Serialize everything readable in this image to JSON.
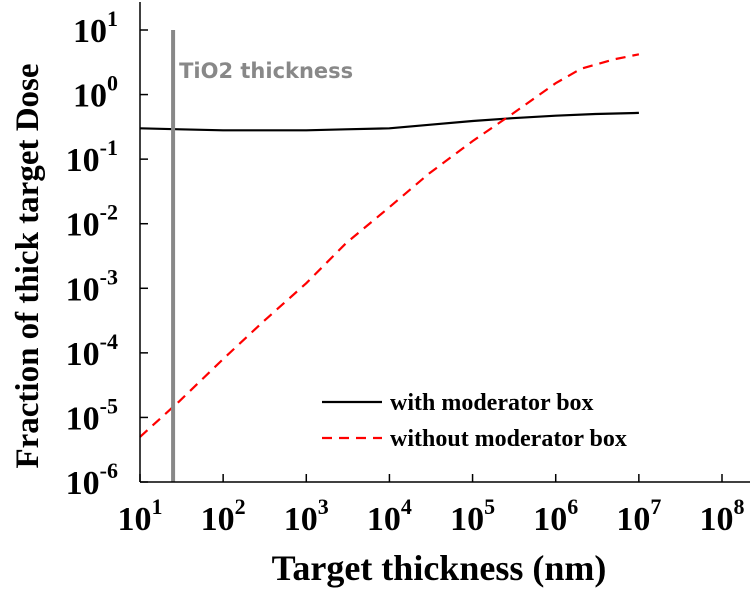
{
  "chart_data": {
    "type": "line",
    "xlabel": "Target thickness (nm)",
    "ylabel": "Fraction of thick target Dose",
    "x_scale": "log",
    "y_scale": "log",
    "xlim": [
      10,
      100000000
    ],
    "ylim": [
      1e-06,
      10
    ],
    "x_ticks": [
      {
        "base": "10",
        "exp": "1",
        "value": 10
      },
      {
        "base": "10",
        "exp": "2",
        "value": 100
      },
      {
        "base": "10",
        "exp": "3",
        "value": 1000
      },
      {
        "base": "10",
        "exp": "4",
        "value": 10000
      },
      {
        "base": "10",
        "exp": "5",
        "value": 100000
      },
      {
        "base": "10",
        "exp": "6",
        "value": 1000000
      },
      {
        "base": "10",
        "exp": "7",
        "value": 10000000
      },
      {
        "base": "10",
        "exp": "8",
        "value": 100000000
      }
    ],
    "y_ticks": [
      {
        "base": "10",
        "exp": "1",
        "value": 10
      },
      {
        "base": "10",
        "exp": "0",
        "value": 1
      },
      {
        "base": "10",
        "exp": "-1",
        "value": 0.1
      },
      {
        "base": "10",
        "exp": "-2",
        "value": 0.01
      },
      {
        "base": "10",
        "exp": "-3",
        "value": 0.001
      },
      {
        "base": "10",
        "exp": "-4",
        "value": 0.0001
      },
      {
        "base": "10",
        "exp": "-5",
        "value": 1e-05
      },
      {
        "base": "10",
        "exp": "-6",
        "value": 1e-06
      }
    ],
    "series": [
      {
        "name": "with moderator box",
        "color": "#000000",
        "style": "solid",
        "x": [
          10,
          30,
          100,
          300,
          1000,
          3000,
          10000,
          30000,
          100000,
          300000,
          1000000,
          3000000,
          10000000
        ],
        "y": [
          0.3,
          0.29,
          0.28,
          0.28,
          0.28,
          0.29,
          0.3,
          0.34,
          0.39,
          0.43,
          0.47,
          0.5,
          0.52
        ]
      },
      {
        "name": "without moderator box",
        "color": "#ff0000",
        "style": "dashed",
        "x": [
          10,
          30,
          100,
          300,
          1000,
          3000,
          10000,
          30000,
          100000,
          300000,
          1000000,
          2000000,
          5000000,
          10000000
        ],
        "y": [
          5e-06,
          1.8e-05,
          8e-05,
          0.0003,
          0.0012,
          0.005,
          0.018,
          0.06,
          0.19,
          0.5,
          1.5,
          2.5,
          3.5,
          4.2
        ]
      }
    ],
    "annotations": [
      {
        "text": "TiO2 thickness",
        "x": 25,
        "color": "#888888"
      }
    ],
    "legend_position": "lower-right",
    "grid": false
  }
}
